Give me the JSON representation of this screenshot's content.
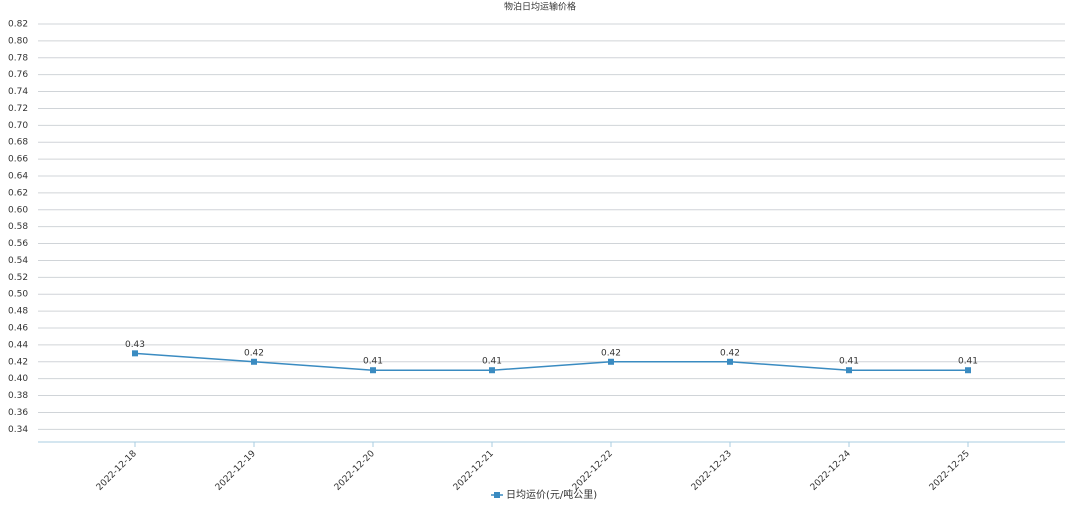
{
  "chart_data": {
    "type": "line",
    "title": "物泊日均运输价格",
    "categories": [
      "2022-12-18",
      "2022-12-19",
      "2022-12-20",
      "2022-12-21",
      "2022-12-22",
      "2022-12-23",
      "2022-12-24",
      "2022-12-25"
    ],
    "series": [
      {
        "name": "日均运价(元/吨公里)",
        "color": "#3a8bc1",
        "values": [
          0.43,
          0.42,
          0.41,
          0.41,
          0.42,
          0.42,
          0.41,
          0.41
        ]
      }
    ],
    "ylim": [
      0.325,
      0.82
    ],
    "yticks": [
      0.34,
      0.36,
      0.38,
      {
        "value": 0.4,
        "label": "0.40"
      },
      0.42,
      0.44,
      0.46,
      0.48,
      {
        "value": 0.5,
        "label": "0.50"
      },
      0.52,
      0.54,
      0.56,
      0.58,
      {
        "value": 0.6,
        "label": "0.60"
      },
      0.62,
      0.64,
      0.66,
      0.68,
      {
        "value": 0.7,
        "label": "0.70"
      },
      0.72,
      0.74,
      0.76,
      0.78,
      {
        "value": 0.8,
        "label": "0.80"
      },
      0.82
    ],
    "grid": true,
    "legend": "bottom"
  }
}
